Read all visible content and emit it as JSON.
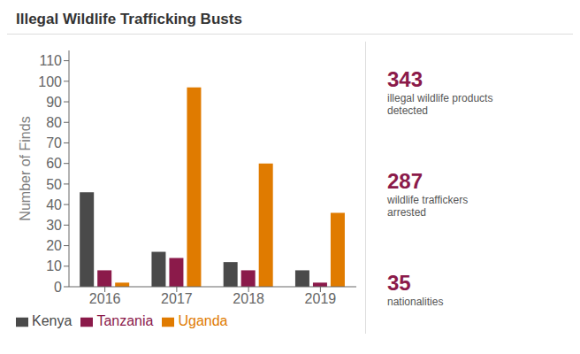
{
  "chart_data": {
    "type": "bar",
    "title": "Illegal Wildlife Trafficking Busts",
    "categories": [
      "2016",
      "2017",
      "2018",
      "2019"
    ],
    "series": [
      {
        "name": "Kenya",
        "color": "#4a4a4a",
        "values": [
          46,
          17,
          12,
          8
        ]
      },
      {
        "name": "Tanzania",
        "color": "#8b1a4a",
        "values": [
          8,
          14,
          8,
          2
        ]
      },
      {
        "name": "Uganda",
        "color": "#e07b00",
        "values": [
          2,
          97,
          60,
          36
        ]
      }
    ],
    "y_label": "Number of Finds",
    "ylim": [
      0,
      115
    ],
    "yticks": [
      0,
      10,
      20,
      30,
      40,
      50,
      60,
      70,
      80,
      90,
      100,
      110
    ],
    "grid": false,
    "legend": "lower left",
    "annotations": [
      [
        "343",
        "illegal wildlife products",
        "detected"
      ],
      [
        "287",
        "wildlife traffickers",
        "arrested"
      ],
      [
        "35",
        "nationalities"
      ]
    ]
  }
}
